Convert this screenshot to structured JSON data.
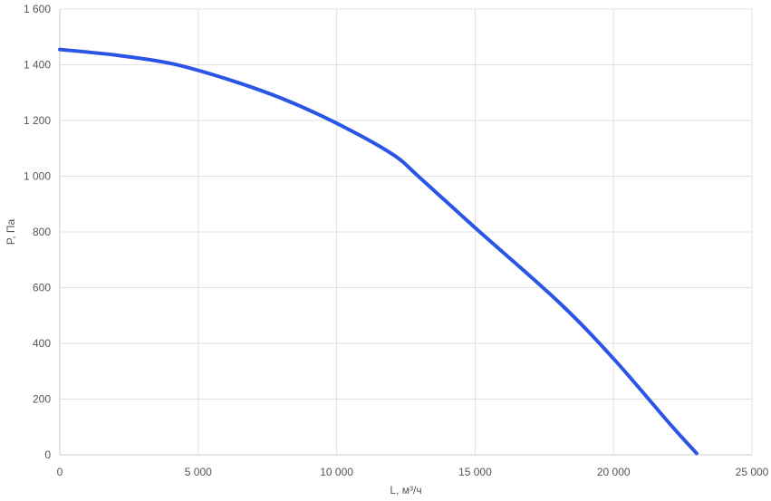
{
  "chart_data": {
    "type": "line",
    "title": "",
    "xlabel": "L, м³/ч",
    "ylabel": "P, Па",
    "xlim": [
      0,
      25000
    ],
    "ylim": [
      0,
      1600
    ],
    "x_ticks": [
      0,
      5000,
      10000,
      15000,
      20000,
      25000
    ],
    "x_tick_labels": [
      "0",
      "5 000",
      "10 000",
      "15 000",
      "20 000",
      "25 000"
    ],
    "y_ticks": [
      0,
      200,
      400,
      600,
      800,
      1000,
      1200,
      1400,
      1600
    ],
    "y_tick_labels": [
      "0",
      "200",
      "400",
      "600",
      "800",
      "1 000",
      "1 200",
      "1 400",
      "1 600"
    ],
    "grid": true,
    "series": [
      {
        "color": "#2a55e5",
        "x": [
          0,
          2000,
          4000,
          6000,
          8000,
          10000,
          12000,
          13000,
          15000,
          18000,
          20000,
          22000,
          23000
        ],
        "y": [
          1455,
          1435,
          1405,
          1350,
          1280,
          1190,
          1080,
          995,
          815,
          550,
          345,
          115,
          5
        ]
      }
    ]
  }
}
